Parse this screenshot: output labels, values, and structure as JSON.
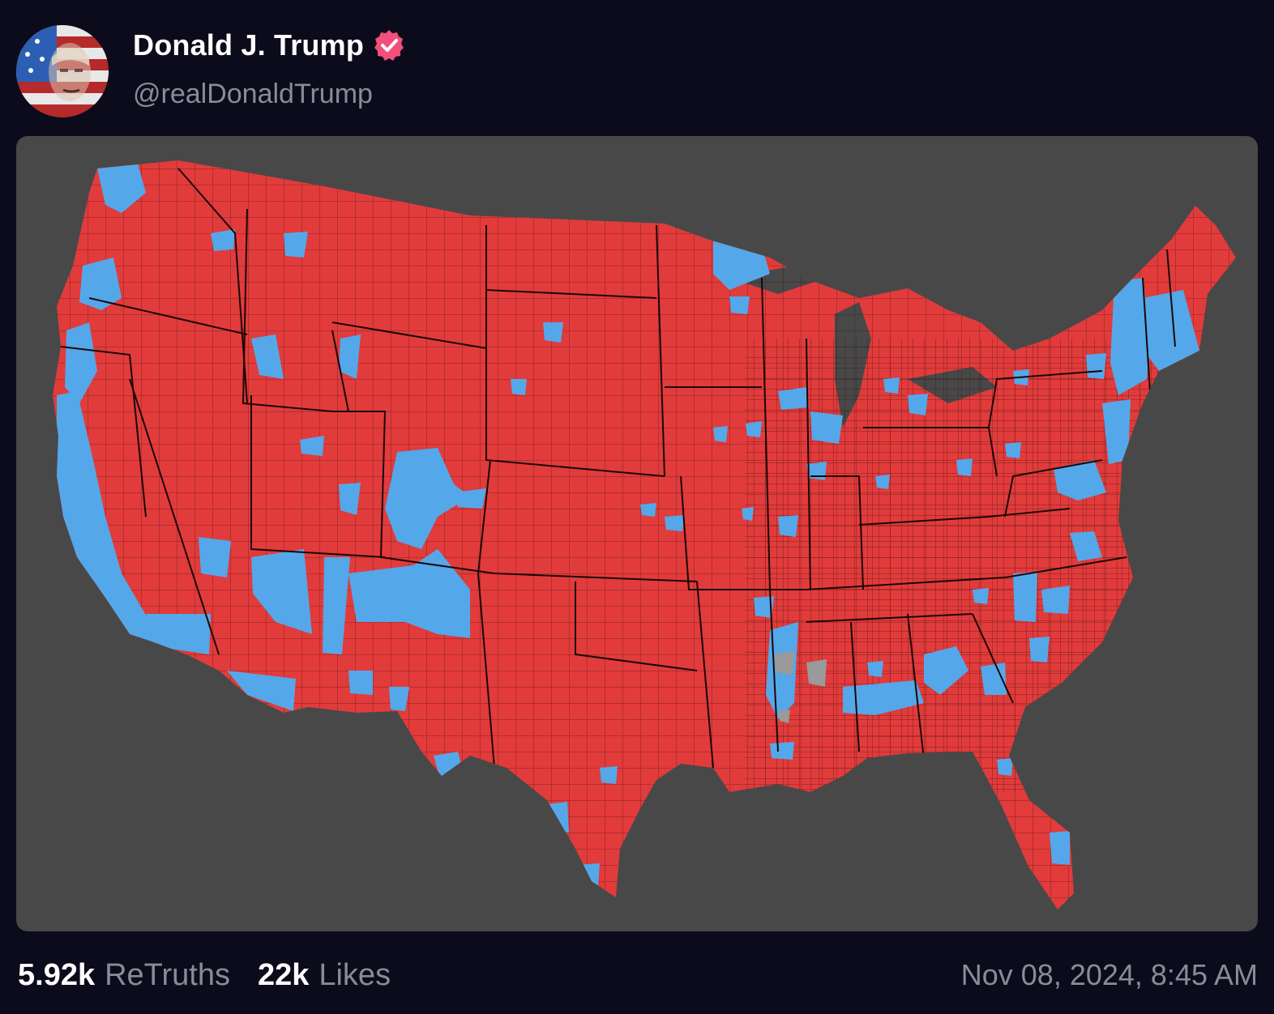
{
  "post": {
    "author": {
      "display_name": "Donald J. Trump",
      "handle": "@realDonaldTrump",
      "verified_icon": "verified-badge-icon",
      "avatar_icon": "avatar-flag-portrait"
    },
    "media": {
      "map_colors": {
        "republican": "#e23b3b",
        "democrat": "#54a8ea",
        "tie": "#9a9a9a",
        "background": "#484848",
        "border": "#2a1010"
      }
    },
    "stats": {
      "retruths_value": "5.92k",
      "retruths_label": "ReTruths",
      "likes_value": "22k",
      "likes_label": "Likes"
    },
    "timestamp": "Nov 08, 2024, 8:45 AM"
  },
  "colors": {
    "page_background": "#0b0b1c",
    "text_primary": "#ffffff",
    "text_secondary": "#8a8a98",
    "verified_badge": "#f0507a"
  }
}
